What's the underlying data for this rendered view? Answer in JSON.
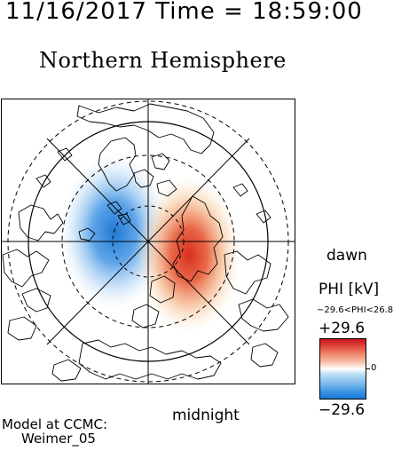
{
  "header": {
    "datetime": "11/16/2017 Time = 18:59:00",
    "title": "Northern Hemisphere"
  },
  "map": {
    "dawn_label": "dawn",
    "midnight_label": "midnight",
    "potential_max_color": "#d7301f",
    "potential_min_color": "#1f78d4"
  },
  "colorbar": {
    "quantity_label": "PHI [kV]",
    "range_text": "−29.6<PHI<26.8",
    "max_label": "+29.6",
    "zero_label": "0",
    "min_label": "−29.6",
    "colors": {
      "positive": "#c8141e",
      "zero": "#ffffff",
      "negative": "#1776d6"
    }
  },
  "credit": {
    "line1": "Model at CCMC:",
    "line2": "Weimer_05"
  }
}
